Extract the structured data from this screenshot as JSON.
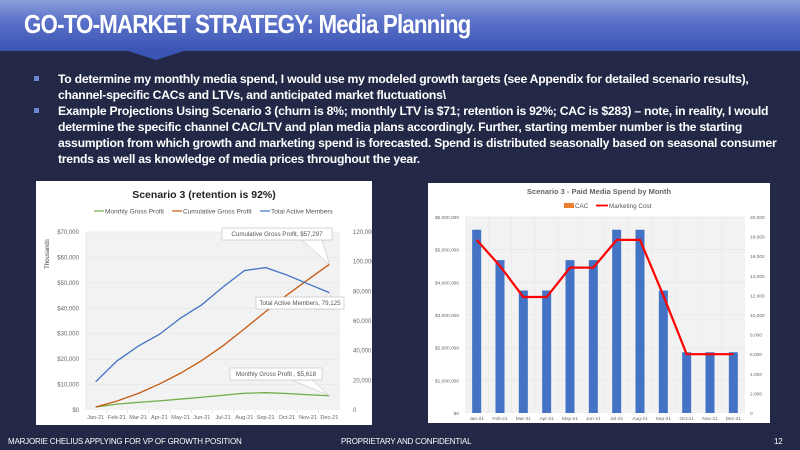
{
  "header": {
    "title": "GO-TO-MARKET STRATEGY: Media Planning"
  },
  "bullets": [
    {
      "text": "To determine my monthly media spend, I would use my modeled growth targets  (see Appendix for detailed scenario results), channel-specific CACs and LTVs, and anticipated market fluctuations\\"
    },
    {
      "text": "Example Projections Using Scenario 3 (churn is 8%; monthly LTV is $71; retention is 92%; CAC is $283) – note, in reality, I would determine the specific channel CAC/LTV and plan media plans accordingly. Further, starting member number is the starting assumption from which growth and marketing spend is forecasted. Spend is distributed seasonally based on seasonal consumer trends as well as knowledge of media prices throughout the year."
    }
  ],
  "chart_data": [
    {
      "type": "line",
      "title": "Scenario 3 (retention is 92%)",
      "categories": [
        "Jan-21",
        "Feb-21",
        "Mar-21",
        "Apr-21",
        "May-21",
        "Jun-21",
        "Jul-21",
        "Aug-21",
        "Sep-21",
        "Oct-21",
        "Nov-21",
        "Dec-21"
      ],
      "ylabel": "Thousands",
      "ylim": [
        0,
        70000
      ],
      "y_ticks": [
        "$0",
        "$10,000",
        "$20,000",
        "$30,000",
        "$40,000",
        "$50,000",
        "$60,000",
        "$70,000"
      ],
      "y2lim": [
        0,
        120000
      ],
      "y2_ticks": [
        "0",
        "20,000",
        "40,000",
        "60,000",
        "80,000",
        "100,000",
        "120,000"
      ],
      "legend_position": "top",
      "grid": true,
      "series": [
        {
          "name": "Monthly Gross Profit",
          "axis": "left",
          "color": "#70ad47",
          "values": [
            1200,
            2300,
            3000,
            3600,
            4300,
            5000,
            5800,
            6600,
            6800,
            6500,
            6000,
            5618
          ]
        },
        {
          "name": "Cumulative Gross Profit",
          "axis": "left",
          "color": "#c55a11",
          "values": [
            1200,
            3500,
            6500,
            10200,
            14500,
            19500,
            25300,
            31900,
            38700,
            45200,
            51300,
            57297
          ]
        },
        {
          "name": "Total Active Members",
          "axis": "right",
          "color": "#4472c4",
          "values": [
            19000,
            33000,
            43000,
            51000,
            62000,
            71000,
            83000,
            94000,
            96000,
            91000,
            85000,
            79125
          ]
        }
      ],
      "annotations": [
        {
          "label": "Cumulative Gross Profit, $57,297"
        },
        {
          "label": "Total Active Members, 79,125"
        },
        {
          "label": "Monthly Gross Profit , $5,618"
        }
      ]
    },
    {
      "type": "bar",
      "title": "Scenario 3 - Paid Media Spend by Month",
      "categories": [
        "Jan-21",
        "Feb-21",
        "Mar-21",
        "Apr-21",
        "May-21",
        "Jun-21",
        "Jul-21",
        "Aug-21",
        "Sep-21",
        "Oct-21",
        "Nov-21",
        "Dec-21"
      ],
      "ylim": [
        0,
        6000000
      ],
      "y_ticks": [
        "$0",
        "$1,000,000",
        "$2,000,000",
        "$3,000,000",
        "$4,000,000",
        "$5,000,000",
        "$6,000,000"
      ],
      "y2lim": [
        0,
        20000
      ],
      "y2_ticks": [
        "0",
        "2,000",
        "4,000",
        "6,000",
        "8,000",
        "10,000",
        "12,000",
        "14,000",
        "16,000",
        "18,000",
        "20,000"
      ],
      "legend_position": "top",
      "grid": true,
      "series": [
        {
          "name": "CAC",
          "type": "bar",
          "axis": "right",
          "color": "#4472c4",
          "legend_color": "#ed7d31",
          "values": [
            18700,
            15600,
            12500,
            12500,
            15600,
            15600,
            18700,
            18700,
            12500,
            6200,
            6200,
            6200
          ]
        },
        {
          "name": "Marketing Cost",
          "type": "line",
          "axis": "left",
          "color": "#ff0000",
          "values": [
            5300000,
            4500000,
            3550000,
            3550000,
            4450000,
            4450000,
            5300000,
            5300000,
            3600000,
            1800000,
            1800000,
            1800000
          ]
        }
      ]
    }
  ],
  "footer": {
    "left": "MARJORIE CHELIUS APPLYING FOR VP OF GROWTH POSITION",
    "center": "PROPRIETARY AND CONFIDENTIAL",
    "page": "12"
  }
}
